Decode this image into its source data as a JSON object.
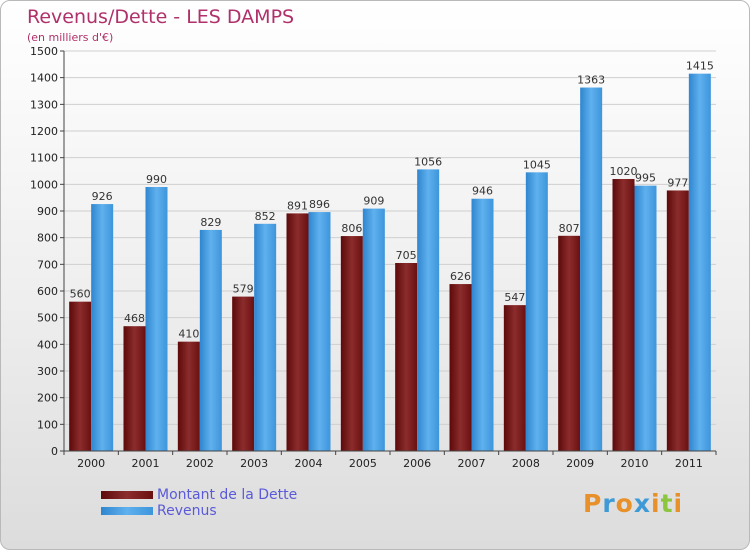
{
  "chart_data": {
    "type": "bar",
    "title": "Revenus/Dette - LES DAMPS",
    "subtitle": "(en milliers d'€)",
    "categories": [
      "2000",
      "2001",
      "2002",
      "2003",
      "2004",
      "2005",
      "2006",
      "2007",
      "2008",
      "2009",
      "2010",
      "2011"
    ],
    "series": [
      {
        "name": "Montant de la Dette",
        "values": [
          560,
          468,
          410,
          579,
          891,
          806,
          705,
          626,
          547,
          807,
          1020,
          977
        ],
        "color": "#7a1212"
      },
      {
        "name": "Revenus",
        "values": [
          926,
          990,
          829,
          852,
          896,
          909,
          1056,
          946,
          1045,
          1363,
          995,
          1415
        ],
        "color": "#4aa3e6"
      }
    ],
    "ylim": [
      0,
      1500
    ],
    "yticks": [
      0,
      100,
      200,
      300,
      400,
      500,
      600,
      700,
      800,
      900,
      1000,
      1100,
      1200,
      1300,
      1400,
      1500
    ],
    "grid": true,
    "legend_position": "bottom-left"
  },
  "logo": {
    "letters": [
      "P",
      "r",
      "o",
      "x",
      "i",
      "t",
      "i"
    ],
    "colors": [
      "#e8902a",
      "#3e9ad6",
      "#e8902a",
      "#3e9ad6",
      "#e8902a",
      "#8cc63f",
      "#e8902a"
    ]
  }
}
